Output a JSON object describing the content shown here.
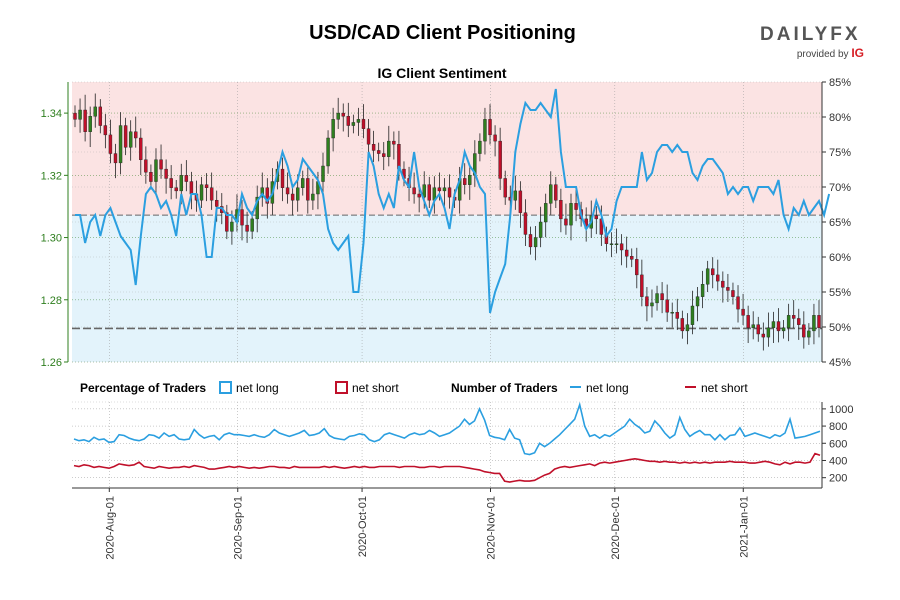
{
  "header": {
    "title": "USD/CAD Client Positioning",
    "logo_text": "DAILYFX",
    "logo_sub": "provided by",
    "logo_brand": "IG"
  },
  "colors": {
    "net_long": "#2b9fe0",
    "net_short": "#c0102a",
    "candle_up": "#2f7f1f",
    "candle_down": "#c0102a",
    "band_above": "#fbe3e3",
    "band_below": "#e3f3fb",
    "ref_line": "#666666",
    "price_axis": "#2f7f1f"
  },
  "legend": {
    "pct_heading": "Percentage of Traders",
    "pct_long": "net long",
    "pct_short": "net short",
    "num_heading": "Number of Traders",
    "num_long": "net long",
    "num_short": "net short"
  },
  "chart_data": [
    {
      "type": "candlestick+line",
      "title": "IG Client Sentiment",
      "x_date_range": [
        "2020-07-23",
        "2021-01-20"
      ],
      "x_ticks": [
        "2020-Aug-01",
        "2020-Sep-01",
        "2020-Oct-01",
        "2020-Nov-01",
        "2020-Dec-01",
        "2021-Jan-01"
      ],
      "y_left_ticks": [
        "1.26",
        "1.28",
        "1.30",
        "1.32",
        "1.34"
      ],
      "y_left_range": [
        1.26,
        1.35
      ],
      "y_right_ticks": [
        "45%",
        "50%",
        "55%",
        "60%",
        "65%",
        "70%",
        "75%",
        "80%",
        "85%"
      ],
      "y_right_range": [
        45,
        85
      ],
      "reference_pct": 50,
      "last_price": 1.2708,
      "reference_price": 1.3072,
      "price_close": [
        1.338,
        1.341,
        1.334,
        1.339,
        1.342,
        1.336,
        1.333,
        1.327,
        1.324,
        1.336,
        1.329,
        1.334,
        1.332,
        1.325,
        1.321,
        1.318,
        1.325,
        1.322,
        1.319,
        1.316,
        1.315,
        1.32,
        1.318,
        1.314,
        1.312,
        1.317,
        1.316,
        1.312,
        1.31,
        1.308,
        1.302,
        1.305,
        1.309,
        1.304,
        1.302,
        1.306,
        1.313,
        1.316,
        1.311,
        1.318,
        1.322,
        1.316,
        1.314,
        1.312,
        1.316,
        1.319,
        1.312,
        1.314,
        1.318,
        1.323,
        1.332,
        1.338,
        1.34,
        1.339,
        1.336,
        1.337,
        1.338,
        1.335,
        1.33,
        1.328,
        1.327,
        1.326,
        1.331,
        1.33,
        1.322,
        1.319,
        1.316,
        1.314,
        1.313,
        1.317,
        1.312,
        1.316,
        1.315,
        1.316,
        1.313,
        1.312,
        1.319,
        1.317,
        1.32,
        1.327,
        1.331,
        1.338,
        1.333,
        1.331,
        1.319,
        1.313,
        1.312,
        1.315,
        1.308,
        1.301,
        1.297,
        1.3,
        1.305,
        1.311,
        1.317,
        1.312,
        1.306,
        1.304,
        1.311,
        1.309,
        1.306,
        1.303,
        1.307,
        1.306,
        1.301,
        1.298,
        1.298,
        1.298,
        1.296,
        1.294,
        1.293,
        1.288,
        1.281,
        1.278,
        1.279,
        1.282,
        1.28,
        1.276,
        1.276,
        1.274,
        1.27,
        1.272,
        1.278,
        1.281,
        1.285,
        1.29,
        1.288,
        1.286,
        1.284,
        1.283,
        1.281,
        1.277,
        1.275,
        1.271,
        1.272,
        1.269,
        1.268,
        1.271,
        1.273,
        1.27,
        1.271,
        1.275,
        1.274,
        1.272,
        1.268,
        1.27,
        1.275,
        1.271
      ],
      "net_long_pct": [
        66,
        66,
        62,
        65,
        66,
        63,
        66,
        67,
        65,
        63,
        62,
        61,
        56,
        63,
        69,
        70,
        69,
        67,
        68,
        66,
        63,
        69,
        66,
        69,
        69,
        66,
        60,
        60,
        67,
        67,
        66,
        66,
        65,
        69,
        67,
        66,
        68,
        69,
        68,
        69,
        72,
        75,
        73,
        70,
        71,
        74,
        73,
        72,
        71,
        69,
        64,
        62,
        61,
        62,
        63,
        55,
        55,
        62,
        75,
        73,
        69,
        67,
        69,
        67,
        73,
        71,
        70,
        75,
        70,
        68,
        66,
        68,
        69,
        67,
        64,
        69,
        71,
        75,
        73,
        72,
        70,
        69,
        52,
        55,
        57,
        59,
        66,
        75,
        79,
        82,
        81,
        81,
        82,
        81,
        80,
        84,
        75,
        70,
        70,
        70,
        66,
        64,
        65,
        68,
        66,
        63,
        64,
        68,
        70,
        70,
        70,
        70,
        75,
        71,
        72,
        75,
        76,
        76,
        75,
        76,
        75,
        75,
        72,
        71,
        73,
        74,
        74,
        73,
        72,
        69,
        70,
        69,
        70,
        70,
        68,
        70,
        70,
        70,
        69,
        71,
        66,
        64,
        67,
        66,
        68,
        66,
        67,
        68,
        66,
        69
      ],
      "net_short_pct": [
        34,
        34,
        38,
        35,
        34,
        37,
        34,
        33,
        35,
        37,
        38,
        39,
        44,
        37,
        31,
        30,
        31,
        33,
        32,
        34,
        37,
        31,
        34,
        31,
        31,
        34,
        40,
        40,
        33,
        33,
        34,
        34,
        35,
        31,
        33,
        34,
        32,
        31,
        32,
        31,
        28,
        25,
        27,
        30,
        29,
        26,
        27,
        28,
        29,
        31,
        36,
        38,
        39,
        38,
        37,
        45,
        45,
        38,
        25,
        27,
        31,
        33,
        31,
        33,
        27,
        29,
        30,
        25,
        30,
        32,
        34,
        32,
        31,
        33,
        36,
        31,
        29,
        25,
        27,
        28,
        30,
        31,
        48,
        45,
        43,
        41,
        34,
        25,
        21,
        18,
        19,
        19,
        18,
        19,
        20,
        16,
        25,
        30,
        30,
        30,
        34,
        36,
        35,
        32,
        34,
        37,
        36,
        32,
        30,
        30,
        30,
        30,
        25,
        29,
        28,
        25,
        24,
        24,
        25,
        24,
        25,
        25,
        28,
        29,
        27,
        26,
        26,
        27,
        28,
        31,
        30,
        31,
        30,
        30,
        32,
        30,
        30,
        30,
        31,
        29,
        34,
        36,
        33,
        34,
        32,
        34,
        33,
        32,
        34,
        31
      ],
      "series": [
        {
          "name": "net long"
        },
        {
          "name": "net short"
        }
      ]
    },
    {
      "type": "line",
      "x_date_range": [
        "2020-07-23",
        "2021-01-20"
      ],
      "y_ticks": [
        "200",
        "400",
        "600",
        "800",
        "1000"
      ],
      "y_range": [
        80,
        1080
      ],
      "net_long_traders": [
        650,
        630,
        640,
        620,
        670,
        640,
        650,
        610,
        620,
        700,
        690,
        660,
        640,
        630,
        650,
        700,
        690,
        660,
        720,
        680,
        700,
        650,
        640,
        650,
        760,
        700,
        660,
        680,
        690,
        640,
        700,
        720,
        700,
        700,
        690,
        680,
        700,
        680,
        670,
        700,
        760,
        720,
        700,
        680,
        700,
        720,
        750,
        690,
        700,
        720,
        770,
        690,
        660,
        650,
        640,
        680,
        690,
        710,
        700,
        640,
        620,
        640,
        700,
        720,
        700,
        680,
        660,
        700,
        720,
        700,
        710,
        750,
        720,
        680,
        700,
        720,
        760,
        800,
        880,
        820,
        860,
        1000,
        870,
        690,
        670,
        660,
        640,
        760,
        660,
        640,
        480,
        470,
        490,
        600,
        560,
        600,
        650,
        700,
        760,
        820,
        880,
        1050,
        800,
        680,
        700,
        660,
        700,
        680,
        720,
        760,
        800,
        880,
        820,
        780,
        720,
        740,
        860,
        800,
        720,
        660,
        700,
        900,
        760,
        680,
        720,
        750,
        700,
        700,
        640,
        700,
        640,
        690,
        700,
        780,
        680,
        700,
        720,
        700,
        680,
        660,
        700,
        680,
        720,
        880,
        660,
        670,
        680,
        700,
        720,
        740
      ],
      "net_short_traders": [
        340,
        330,
        350,
        340,
        320,
        330,
        320,
        310,
        330,
        360,
        350,
        340,
        350,
        380,
        330,
        320,
        310,
        330,
        320,
        310,
        320,
        320,
        330,
        320,
        340,
        330,
        320,
        300,
        300,
        310,
        320,
        330,
        320,
        330,
        320,
        310,
        320,
        310,
        320,
        330,
        330,
        320,
        320,
        310,
        330,
        320,
        320,
        320,
        320,
        320,
        330,
        320,
        330,
        320,
        310,
        320,
        330,
        320,
        330,
        320,
        320,
        330,
        330,
        330,
        330,
        320,
        330,
        330,
        330,
        320,
        320,
        330,
        330,
        320,
        330,
        330,
        330,
        330,
        320,
        310,
        300,
        290,
        270,
        260,
        250,
        250,
        160,
        150,
        160,
        170,
        160,
        160,
        170,
        200,
        230,
        250,
        300,
        320,
        330,
        320,
        330,
        340,
        350,
        360,
        340,
        370,
        380,
        370,
        380,
        390,
        400,
        410,
        420,
        410,
        400,
        390,
        390,
        380,
        390,
        380,
        380,
        370,
        380,
        370,
        380,
        370,
        380,
        370,
        380,
        380,
        380,
        390,
        380,
        380,
        380,
        370,
        370,
        380,
        390,
        380,
        360,
        350,
        380,
        360,
        380,
        380,
        370,
        380,
        480,
        460
      ]
    }
  ]
}
